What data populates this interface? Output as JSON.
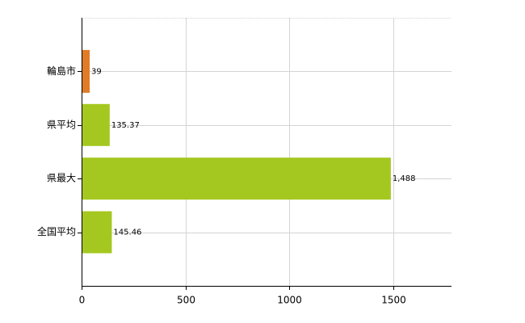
{
  "chart_data": {
    "type": "bar",
    "orientation": "horizontal",
    "categories": [
      "輪島市",
      "県平均",
      "県最大",
      "全国平均"
    ],
    "values": [
      39,
      135.37,
      1488,
      145.46
    ],
    "value_labels": [
      "39",
      "135.37",
      "1,488",
      "145.46"
    ],
    "colors": [
      "#e07b27",
      "#a5c820",
      "#a5c820",
      "#a5c820"
    ],
    "xlim": [
      0,
      1780
    ],
    "xticks": [
      0,
      500,
      1000,
      1500
    ],
    "grid": true
  }
}
